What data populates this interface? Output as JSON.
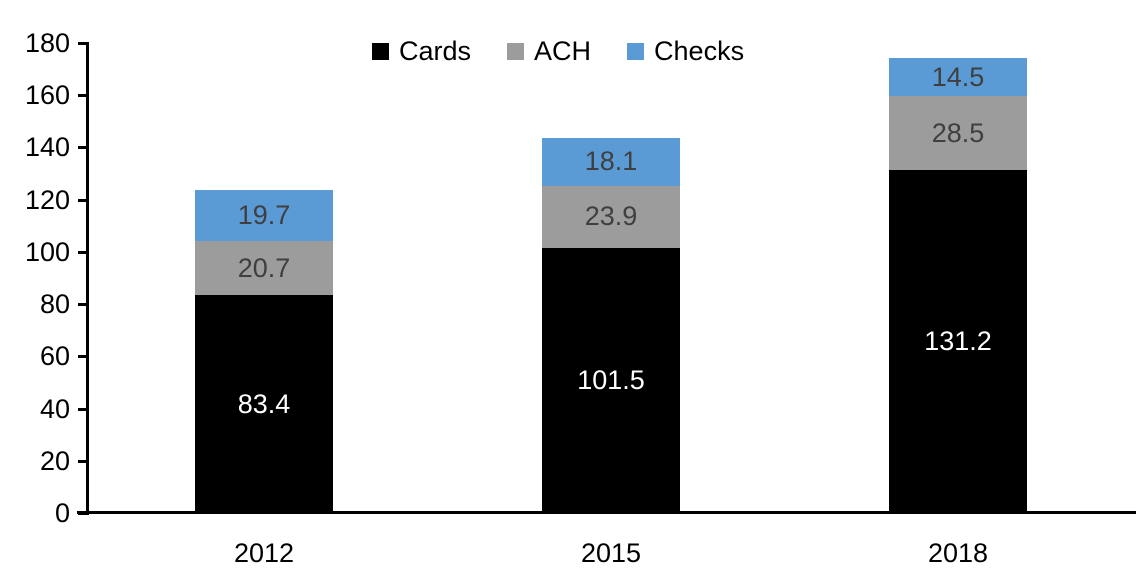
{
  "chart_data": {
    "type": "bar",
    "stacked": true,
    "title": "",
    "xlabel": "",
    "ylabel": "",
    "categories": [
      "2012",
      "2015",
      "2018"
    ],
    "series": [
      {
        "name": "Cards",
        "color": "#000000",
        "label_color": "#ffffff",
        "values": [
          83.4,
          101.5,
          131.2
        ]
      },
      {
        "name": "ACH",
        "color": "#9c9c9c",
        "label_color": "#3f3f3f",
        "values": [
          20.7,
          23.9,
          28.5
        ]
      },
      {
        "name": "Checks",
        "color": "#5b9bd5",
        "label_color": "#3f3f3f",
        "values": [
          19.7,
          18.1,
          14.5
        ]
      }
    ],
    "yticks": [
      0,
      20,
      40,
      60,
      80,
      100,
      120,
      140,
      160,
      180
    ],
    "ylim": [
      0,
      180
    ],
    "grid": false,
    "legend_position": "top",
    "legend_entries": [
      "Cards",
      "ACH",
      "Checks"
    ],
    "totals": [
      123.8,
      143.5,
      174.2
    ]
  }
}
